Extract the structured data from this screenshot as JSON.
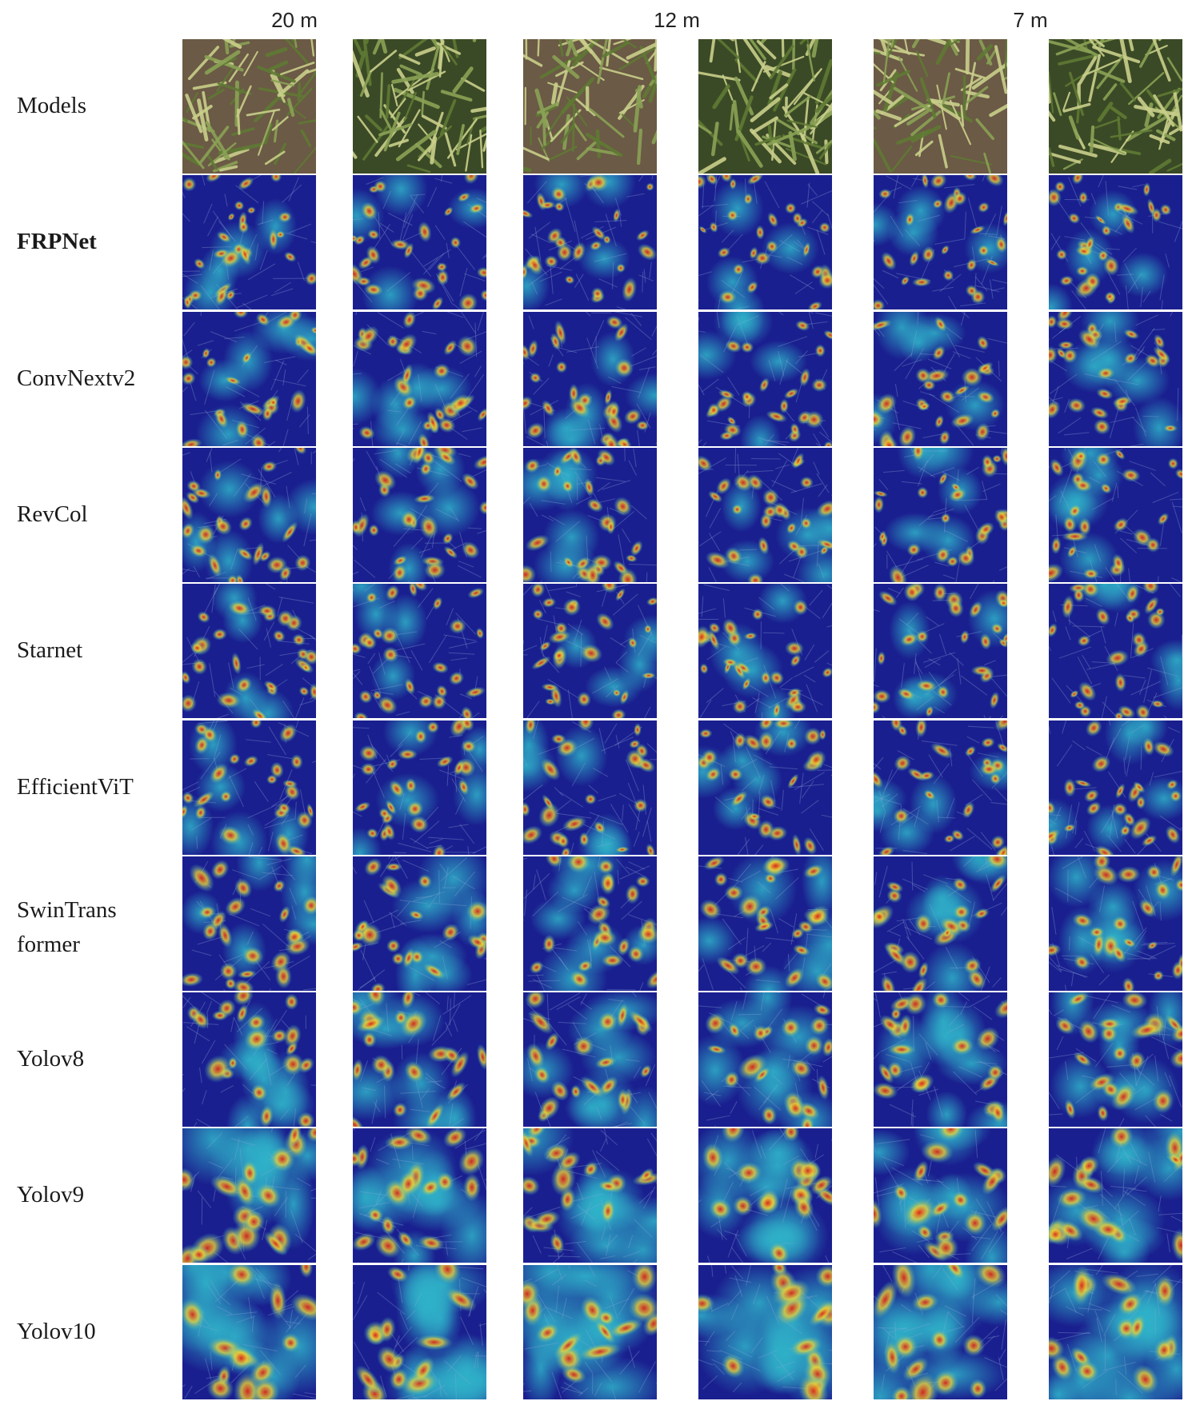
{
  "column_groups": [
    {
      "label": "20 m"
    },
    {
      "label": "12 m"
    },
    {
      "label": "7 m"
    }
  ],
  "rows": [
    {
      "label": "Models",
      "bold": false,
      "kind": "photo"
    },
    {
      "label": "FRPNet",
      "bold": true,
      "kind": "heat",
      "intensity": 0.35,
      "spread": 0.25
    },
    {
      "label": "ConvNextv2",
      "bold": false,
      "kind": "heat",
      "intensity": 0.45,
      "spread": 0.35
    },
    {
      "label": "RevCol",
      "bold": false,
      "kind": "heat",
      "intensity": 0.45,
      "spread": 0.35
    },
    {
      "label": "Starnet",
      "bold": false,
      "kind": "heat",
      "intensity": 0.4,
      "spread": 0.3
    },
    {
      "label": "EfficientViT",
      "bold": false,
      "kind": "heat",
      "intensity": 0.45,
      "spread": 0.35
    },
    {
      "label": "SwinTrans",
      "label2": "former",
      "bold": false,
      "kind": "heat",
      "intensity": 0.55,
      "spread": 0.5
    },
    {
      "label": "Yolov8",
      "bold": false,
      "kind": "heat",
      "intensity": 0.6,
      "spread": 0.6
    },
    {
      "label": "Yolov9",
      "bold": false,
      "kind": "heat",
      "intensity": 0.7,
      "spread": 0.75
    },
    {
      "label": "Yolov10",
      "bold": false,
      "kind": "heat",
      "intensity": 0.85,
      "spread": 0.95
    }
  ],
  "colors": {
    "background": "#ffffff",
    "heat_low": "#1a1f8f",
    "heat_mid": "#2fb3c9",
    "heat_warm": "#e8d23a",
    "heat_hot": "#d9261c",
    "crop_dark": "#3b4a26",
    "crop_light": "#c9cf8a",
    "soil": "#6b5a45"
  }
}
